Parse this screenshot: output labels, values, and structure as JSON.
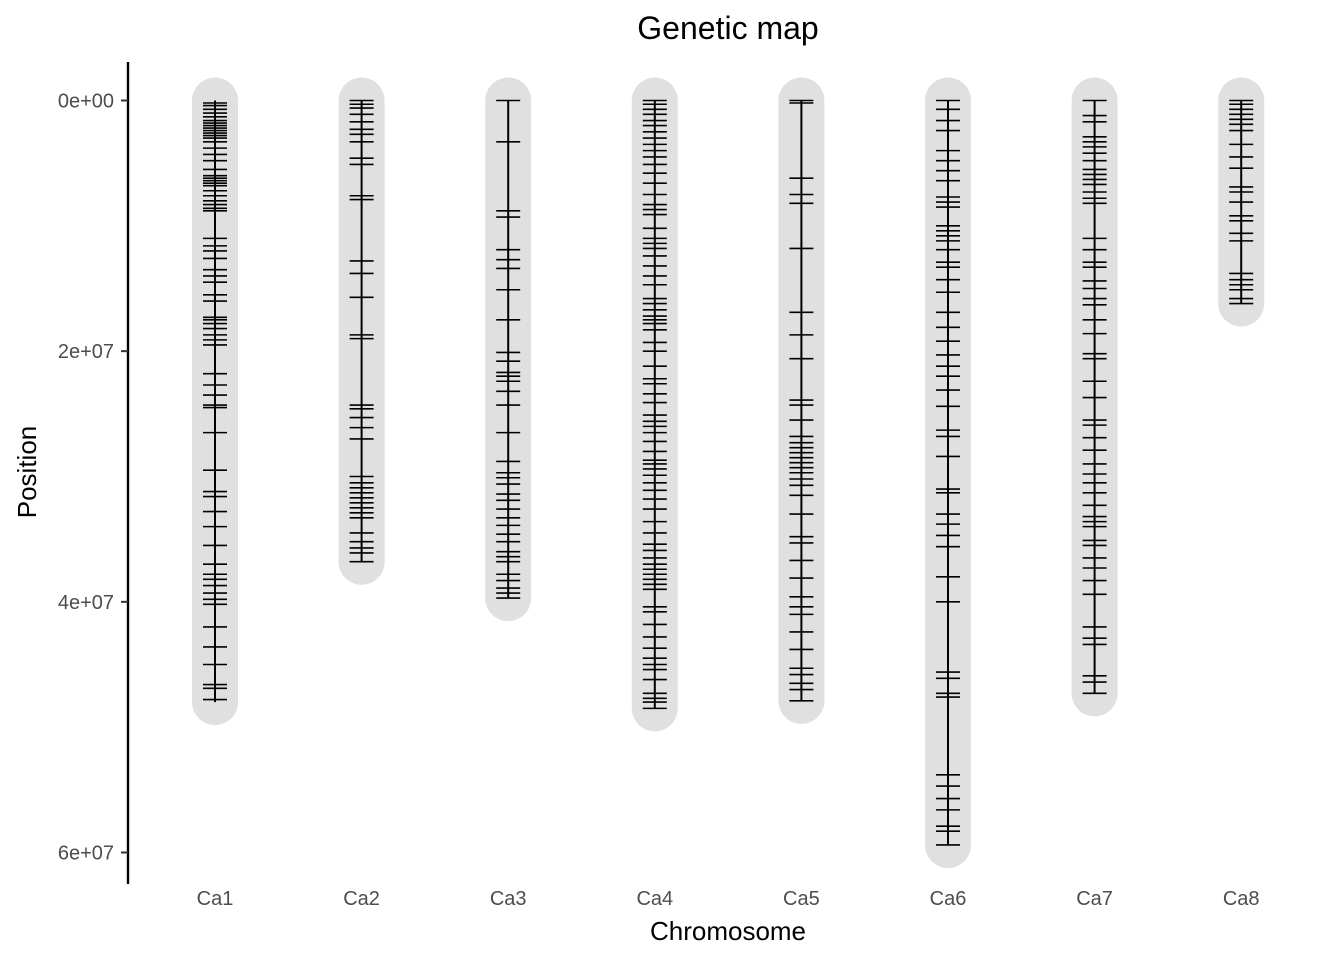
{
  "chart_data": {
    "type": "genetic-map",
    "title": "Genetic map",
    "xlabel": "Chromosome",
    "ylabel": "Position",
    "ylim": [
      0,
      62000000
    ],
    "y_reversed": true,
    "yticks": [
      {
        "value": 0,
        "label": "0e+00"
      },
      {
        "value": 20000000,
        "label": "2e+07"
      },
      {
        "value": 40000000,
        "label": "4e+07"
      },
      {
        "value": 60000000,
        "label": "6e+07"
      }
    ],
    "grid": false,
    "colors": {
      "background_band": "#e0e0e0",
      "marker": "#000000",
      "axis": "#000000"
    },
    "chromosomes": [
      {
        "name": "Ca1",
        "length": 48000000,
        "markers": [
          200000,
          400000,
          700000,
          1000000,
          1300000,
          1600000,
          1800000,
          2000000,
          2200000,
          2400000,
          2600000,
          2800000,
          3000000,
          3300000,
          3800000,
          4300000,
          4800000,
          5500000,
          6000000,
          6200000,
          6400000,
          6600000,
          6800000,
          7200000,
          7600000,
          8000000,
          8300000,
          8600000,
          8800000,
          11000000,
          11600000,
          12000000,
          12600000,
          13500000,
          14000000,
          14500000,
          15500000,
          16000000,
          17300000,
          17500000,
          17800000,
          18200000,
          18700000,
          19100000,
          19500000,
          21800000,
          22700000,
          23500000,
          24300000,
          24500000,
          26500000,
          29500000,
          31200000,
          31600000,
          32800000,
          34000000,
          35500000,
          37000000,
          37800000,
          38200000,
          38700000,
          39300000,
          39800000,
          40200000,
          42000000,
          43600000,
          45000000,
          46600000,
          46900000,
          47800000
        ]
      },
      {
        "name": "Ca2",
        "length": 36800000,
        "markers": [
          0,
          300000,
          600000,
          1100000,
          1700000,
          2300000,
          2700000,
          3300000,
          4600000,
          5100000,
          7600000,
          7900000,
          12800000,
          13800000,
          15700000,
          18700000,
          19000000,
          24300000,
          24600000,
          25300000,
          26100000,
          27000000,
          30000000,
          30500000,
          30900000,
          31300000,
          31700000,
          32100000,
          32500000,
          32900000,
          33300000,
          34500000,
          35200000,
          35700000,
          36100000,
          36800000
        ]
      },
      {
        "name": "Ca3",
        "length": 39700000,
        "markers": [
          0,
          3300000,
          8800000,
          9300000,
          11900000,
          12700000,
          13400000,
          15100000,
          17500000,
          20100000,
          20800000,
          21700000,
          22000000,
          22400000,
          23200000,
          24300000,
          26500000,
          28800000,
          29700000,
          30100000,
          30600000,
          31400000,
          31900000,
          32600000,
          33300000,
          33900000,
          34600000,
          35200000,
          36000000,
          36400000,
          36800000,
          37800000,
          38300000,
          38900000,
          39300000,
          39700000
        ]
      },
      {
        "name": "Ca4",
        "length": 48500000,
        "markers": [
          0,
          300000,
          700000,
          1100000,
          1600000,
          2000000,
          2500000,
          3000000,
          3500000,
          4000000,
          4500000,
          5100000,
          5800000,
          6600000,
          7500000,
          8300000,
          8700000,
          9100000,
          10200000,
          11000000,
          11400000,
          11800000,
          12400000,
          13200000,
          14000000,
          14700000,
          15800000,
          16200000,
          16700000,
          17200000,
          17500000,
          17800000,
          18300000,
          19300000,
          20000000,
          21200000,
          22200000,
          22600000,
          23400000,
          24100000,
          25100000,
          25600000,
          26000000,
          26500000,
          27200000,
          28000000,
          28700000,
          29000000,
          29400000,
          29900000,
          30500000,
          31100000,
          31800000,
          32600000,
          33600000,
          34500000,
          35400000,
          35900000,
          36500000,
          37000000,
          37400000,
          37800000,
          38200000,
          38600000,
          39000000,
          40400000,
          40800000,
          41800000,
          42800000,
          43700000,
          44500000,
          45000000,
          45400000,
          46200000,
          47300000,
          47700000,
          48000000,
          48500000
        ]
      },
      {
        "name": "Ca5",
        "length": 47900000,
        "markers": [
          0,
          200000,
          6200000,
          7500000,
          8200000,
          11800000,
          16900000,
          18700000,
          20600000,
          23900000,
          24300000,
          25500000,
          26800000,
          27300000,
          27700000,
          28100000,
          28500000,
          28900000,
          29300000,
          29700000,
          30200000,
          30700000,
          31500000,
          33000000,
          34800000,
          35300000,
          36700000,
          38100000,
          39600000,
          40400000,
          41000000,
          42400000,
          43800000,
          45300000,
          45800000,
          46500000,
          47000000,
          47900000
        ]
      },
      {
        "name": "Ca6",
        "length": 59400000,
        "markers": [
          0,
          700000,
          1600000,
          2400000,
          4000000,
          4800000,
          5600000,
          6400000,
          7700000,
          8100000,
          8500000,
          10000000,
          10400000,
          10800000,
          11200000,
          11900000,
          12900000,
          13300000,
          14300000,
          15300000,
          16900000,
          18100000,
          19200000,
          20300000,
          21200000,
          22000000,
          23100000,
          24400000,
          26300000,
          26800000,
          28400000,
          31000000,
          31300000,
          33000000,
          33800000,
          34700000,
          35600000,
          38000000,
          40000000,
          45600000,
          46100000,
          47300000,
          47600000,
          53800000,
          54700000,
          55700000,
          56600000,
          57900000,
          58300000,
          59400000
        ]
      },
      {
        "name": "Ca7",
        "length": 47300000,
        "markers": [
          0,
          1200000,
          1700000,
          2900000,
          3300000,
          3700000,
          4200000,
          4800000,
          5500000,
          5900000,
          6300000,
          6700000,
          7300000,
          7800000,
          8200000,
          11000000,
          11900000,
          12900000,
          13300000,
          14400000,
          15000000,
          15800000,
          16300000,
          17500000,
          18600000,
          20200000,
          20600000,
          22400000,
          23700000,
          25500000,
          25900000,
          26900000,
          27900000,
          29000000,
          29800000,
          30500000,
          31300000,
          32300000,
          33200000,
          33600000,
          34000000,
          35100000,
          35500000,
          36500000,
          37300000,
          38300000,
          39400000,
          42000000,
          42900000,
          43400000,
          45900000,
          46400000,
          47300000
        ]
      },
      {
        "name": "Ca8",
        "length": 16200000,
        "markers": [
          0,
          300000,
          700000,
          1100000,
          1500000,
          1900000,
          2400000,
          3500000,
          4500000,
          5400000,
          6900000,
          7300000,
          8100000,
          9200000,
          9600000,
          10600000,
          11200000,
          13800000,
          14300000,
          14700000,
          15100000,
          15800000,
          16200000
        ]
      }
    ]
  }
}
